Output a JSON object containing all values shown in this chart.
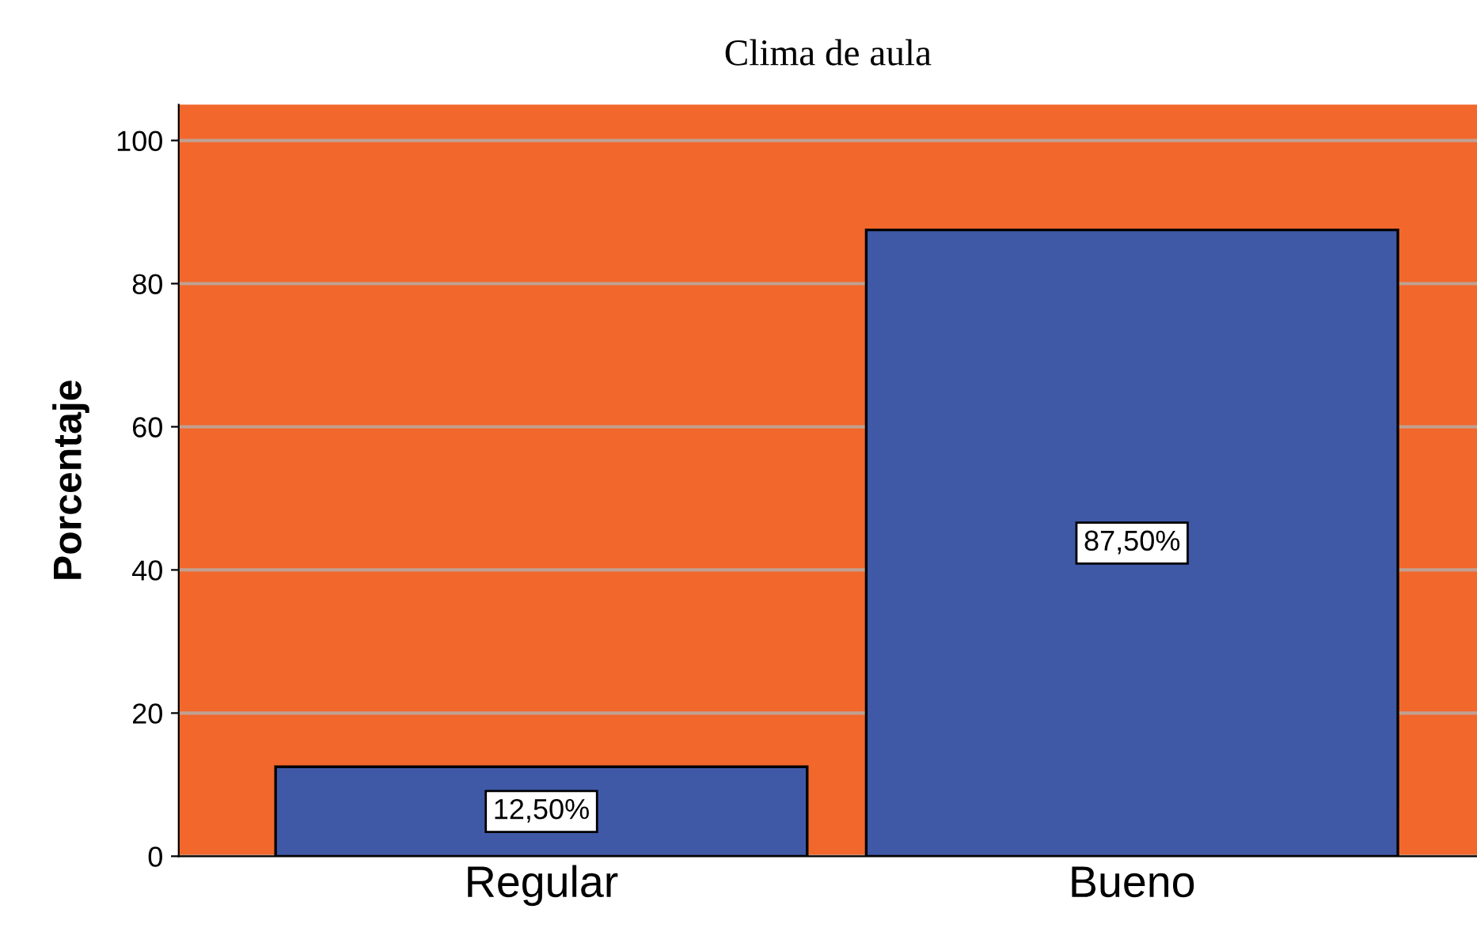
{
  "chart_data": {
    "type": "bar",
    "title": "Clima de aula",
    "ylabel": "Porcentaje",
    "categories": [
      "Regular",
      "Bueno"
    ],
    "values": [
      12.5,
      87.5
    ],
    "value_labels": [
      "12,50%",
      "87,50%"
    ],
    "color": "#3f59a6",
    "ylim": [
      0,
      105
    ],
    "yticks": [
      0,
      20,
      40,
      60,
      80,
      100
    ],
    "grid": "y"
  }
}
